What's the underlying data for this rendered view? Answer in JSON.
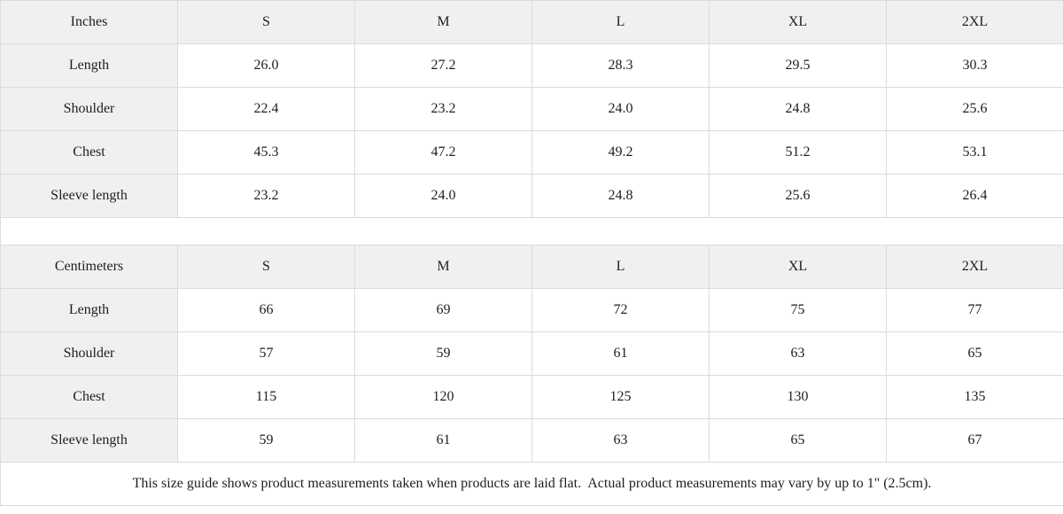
{
  "colors": {
    "header_bg": "#f0f0f0",
    "border": "#dbdbdb",
    "text": "#1e1e1e"
  },
  "size_tables": [
    {
      "unit_label": "Inches",
      "columns": [
        "S",
        "M",
        "L",
        "XL",
        "2XL"
      ],
      "rows": [
        {
          "label": "Length",
          "values": [
            "26.0",
            "27.2",
            "28.3",
            "29.5",
            "30.3"
          ]
        },
        {
          "label": "Shoulder",
          "values": [
            "22.4",
            "23.2",
            "24.0",
            "24.8",
            "25.6"
          ]
        },
        {
          "label": "Chest",
          "values": [
            "45.3",
            "47.2",
            "49.2",
            "51.2",
            "53.1"
          ]
        },
        {
          "label": "Sleeve length",
          "values": [
            "23.2",
            "24.0",
            "24.8",
            "25.6",
            "26.4"
          ]
        }
      ]
    },
    {
      "unit_label": "Centimeters",
      "columns": [
        "S",
        "M",
        "L",
        "XL",
        "2XL"
      ],
      "rows": [
        {
          "label": "Length",
          "values": [
            "66",
            "69",
            "72",
            "75",
            "77"
          ]
        },
        {
          "label": "Shoulder",
          "values": [
            "57",
            "59",
            "61",
            "63",
            "65"
          ]
        },
        {
          "label": "Chest",
          "values": [
            "115",
            "120",
            "125",
            "130",
            "135"
          ]
        },
        {
          "label": "Sleeve length",
          "values": [
            "59",
            "61",
            "63",
            "65",
            "67"
          ]
        }
      ]
    }
  ],
  "footer": {
    "note": "This size guide shows product measurements taken when products are laid flat.  Actual product measurements may vary by up to 1\" (2.5cm)."
  }
}
